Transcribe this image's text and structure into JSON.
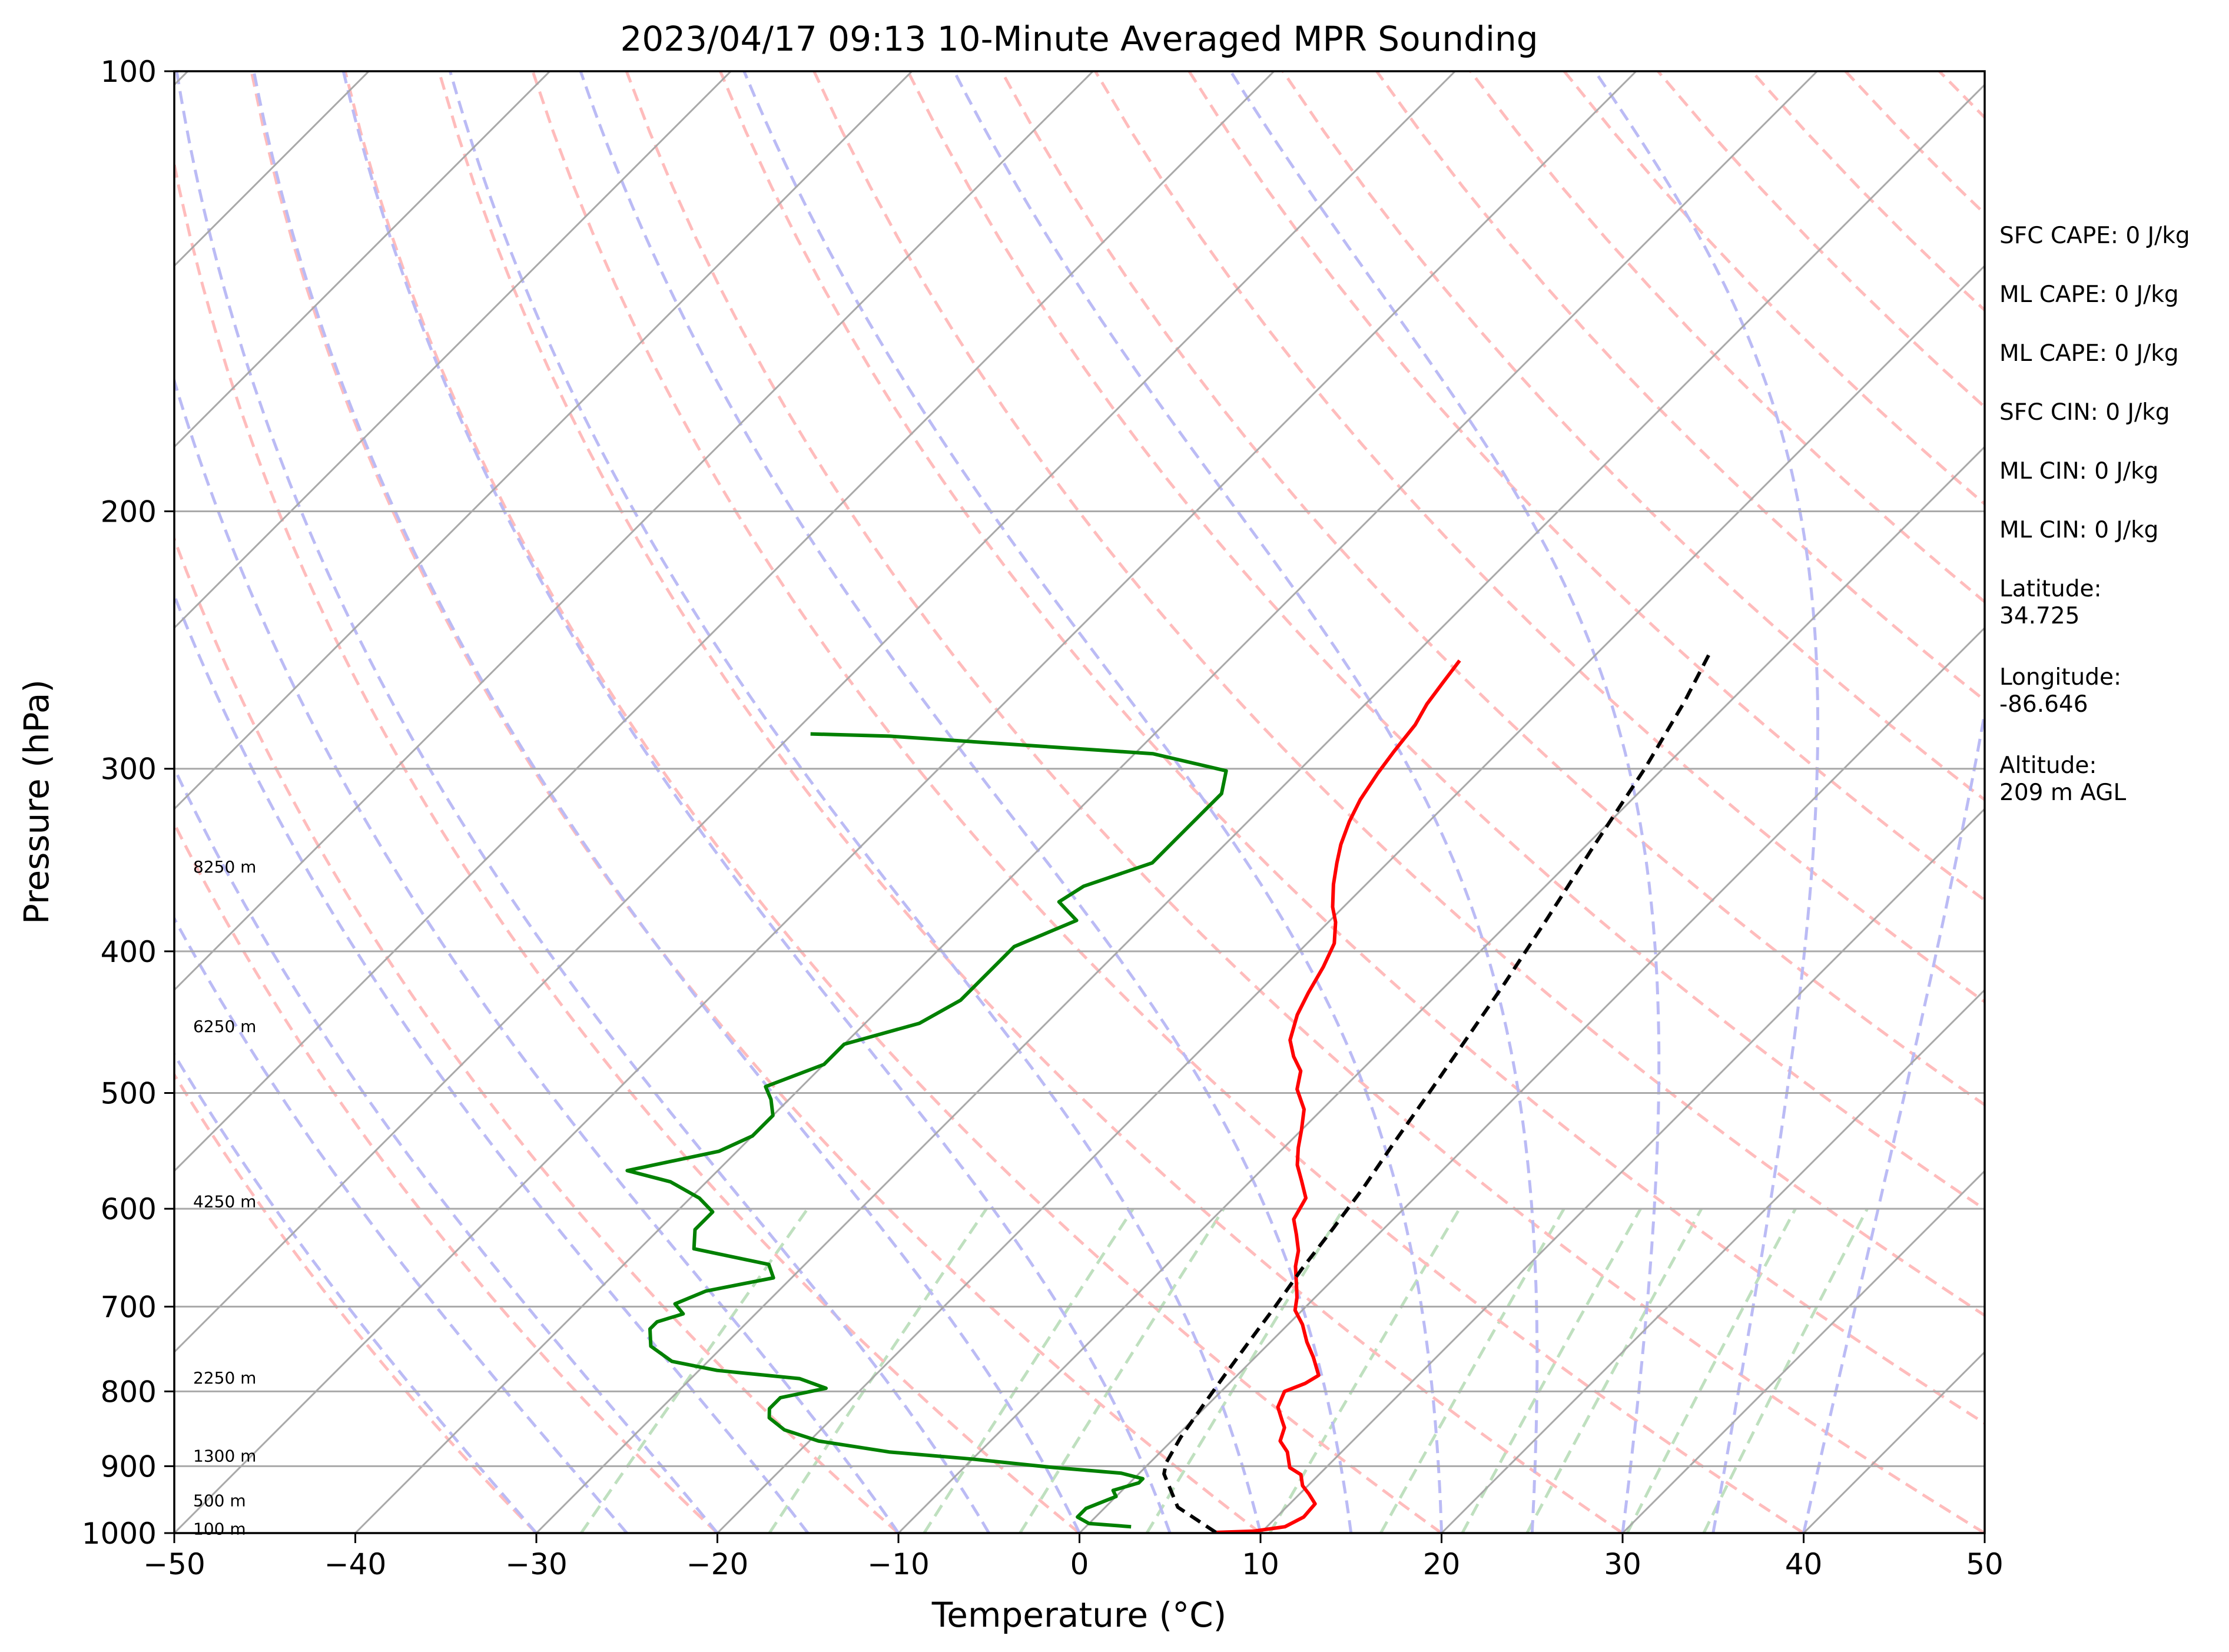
{
  "chart_data": {
    "type": "line",
    "subtype": "skew-t log-p",
    "title": "2023/04/17 09:13 10-Minute Averaged MPR Sounding",
    "xlabel": "Temperature (°C)",
    "ylabel": "Pressure (hPa)",
    "xlim": [
      -50,
      50
    ],
    "ylim": [
      1000,
      100
    ],
    "y_scale": "log",
    "skew_degrees": 45,
    "x_ticks": [
      "−50",
      "−40",
      "−30",
      "−20",
      "−10",
      "0",
      "10",
      "20",
      "30",
      "40",
      "50"
    ],
    "y_ticks": [
      "100",
      "200",
      "300",
      "400",
      "500",
      "600",
      "700",
      "800",
      "900",
      "1000"
    ],
    "height_labels": [
      {
        "p": 350,
        "text": "8250 m"
      },
      {
        "p": 450,
        "text": "6250 m"
      },
      {
        "p": 593,
        "text": "4250 m"
      },
      {
        "p": 783,
        "text": "2250 m"
      },
      {
        "p": 885,
        "text": "1300 m"
      },
      {
        "p": 950,
        "text": "500 m"
      },
      {
        "p": 993,
        "text": "100 m"
      }
    ],
    "series": [
      {
        "role": "temperature",
        "color": "#ff0000",
        "points": [
          [
            999,
            7.5
          ],
          [
            997,
            9.5
          ],
          [
            990,
            11.0
          ],
          [
            975,
            11.5
          ],
          [
            955,
            11.4
          ],
          [
            940,
            10.5
          ],
          [
            928,
            9.7
          ],
          [
            912,
            9.0
          ],
          [
            902,
            8.0
          ],
          [
            880,
            7.0
          ],
          [
            865,
            6.0
          ],
          [
            847,
            5.5
          ],
          [
            838,
            5.0
          ],
          [
            820,
            4.0
          ],
          [
            800,
            3.5
          ],
          [
            790,
            4.2
          ],
          [
            780,
            4.5
          ],
          [
            758,
            3.2
          ],
          [
            740,
            2.0
          ],
          [
            720,
            0.8
          ],
          [
            704,
            -0.4
          ],
          [
            690,
            -1.0
          ],
          [
            675,
            -1.8
          ],
          [
            657,
            -2.8
          ],
          [
            641,
            -3.5
          ],
          [
            625,
            -4.5
          ],
          [
            610,
            -5.5
          ],
          [
            590,
            -6.0
          ],
          [
            574,
            -7.2
          ],
          [
            560,
            -8.3
          ],
          [
            545,
            -9.2
          ],
          [
            530,
            -10.0
          ],
          [
            513,
            -11.0
          ],
          [
            497,
            -12.5
          ],
          [
            483,
            -13.3
          ],
          [
            472,
            -14.5
          ],
          [
            460,
            -15.6
          ],
          [
            442,
            -16.6
          ],
          [
            427,
            -17.2
          ],
          [
            410,
            -17.8
          ],
          [
            395,
            -18.5
          ],
          [
            382,
            -19.6
          ],
          [
            373,
            -20.6
          ],
          [
            360,
            -21.8
          ],
          [
            348,
            -22.8
          ],
          [
            338,
            -23.6
          ],
          [
            326,
            -24.4
          ],
          [
            315,
            -25.0
          ],
          [
            302,
            -25.5
          ],
          [
            292,
            -25.8
          ],
          [
            280,
            -26.1
          ],
          [
            271,
            -26.6
          ],
          [
            262,
            -26.9
          ],
          [
            253,
            -27.2
          ]
        ]
      },
      {
        "role": "dewpoint",
        "color": "#008000",
        "points": [
          [
            990,
            2.5
          ],
          [
            985,
            0.0
          ],
          [
            975,
            -1.0
          ],
          [
            962,
            -1.0
          ],
          [
            953,
            -0.5
          ],
          [
            944,
            0.0
          ],
          [
            935,
            -0.5
          ],
          [
            924,
            0.5
          ],
          [
            918,
            0.5
          ],
          [
            910,
            -1.0
          ],
          [
            902,
            -5.0
          ],
          [
            890,
            -10.0
          ],
          [
            880,
            -15.0
          ],
          [
            865,
            -19.5
          ],
          [
            850,
            -22.0
          ],
          [
            834,
            -23.5
          ],
          [
            822,
            -24.0
          ],
          [
            808,
            -24.0
          ],
          [
            796,
            -22.0
          ],
          [
            784,
            -24.0
          ],
          [
            774,
            -29.0
          ],
          [
            763,
            -32.0
          ],
          [
            745,
            -34.0
          ],
          [
            725,
            -35.0
          ],
          [
            717,
            -35.0
          ],
          [
            708,
            -34.0
          ],
          [
            697,
            -35.0
          ],
          [
            683,
            -34.0
          ],
          [
            669,
            -31.0
          ],
          [
            655,
            -32.0
          ],
          [
            639,
            -37.0
          ],
          [
            620,
            -38.0
          ],
          [
            603,
            -38.0
          ],
          [
            590,
            -39.5
          ],
          [
            575,
            -42.0
          ],
          [
            565,
            -45.0
          ],
          [
            548,
            -41.0
          ],
          [
            535,
            -40.0
          ],
          [
            518,
            -40.0
          ],
          [
            505,
            -41.0
          ],
          [
            495,
            -42.0
          ],
          [
            478,
            -40.0
          ],
          [
            463,
            -40.0
          ],
          [
            448,
            -37.0
          ],
          [
            432,
            -36.0
          ],
          [
            418,
            -36.0
          ],
          [
            406,
            -36.0
          ],
          [
            397,
            -36.0
          ],
          [
            381,
            -34.0
          ],
          [
            370,
            -36.0
          ],
          [
            361,
            -35.5
          ],
          [
            348,
            -33.0
          ],
          [
            336,
            -33.0
          ],
          [
            322,
            -33.0
          ],
          [
            312,
            -33.0
          ],
          [
            301,
            -34.0
          ],
          [
            293,
            -39.0
          ],
          [
            285,
            -54.5
          ],
          [
            284,
            -59.0
          ]
        ]
      },
      {
        "role": "parcel",
        "color": "#000000",
        "style": "dashed",
        "points": [
          [
            999,
            7.5
          ],
          [
            960,
            4.0
          ],
          [
            911,
            1.4
          ],
          [
            895,
            0.9
          ],
          [
            860,
            0.3
          ],
          [
            820,
            -0.2
          ],
          [
            780,
            -0.7
          ],
          [
            740,
            -1.2
          ],
          [
            700,
            -1.7
          ],
          [
            660,
            -2.3
          ],
          [
            620,
            -2.8
          ],
          [
            580,
            -3.4
          ],
          [
            540,
            -4.2
          ],
          [
            500,
            -5.0
          ],
          [
            460,
            -5.9
          ],
          [
            420,
            -6.9
          ],
          [
            380,
            -8.1
          ],
          [
            340,
            -9.5
          ],
          [
            300,
            -11.0
          ],
          [
            270,
            -12.5
          ],
          [
            250,
            -13.8
          ]
        ]
      }
    ],
    "background_lines": {
      "isotherm_color": "#a9a9a9",
      "dry_adiabat_color": "#ffbcbc",
      "moist_adiabat_color": "#bbbbf5",
      "mixing_ratio_color": "#bfe0bf"
    },
    "annotations": [
      [
        "SFC CAPE: 0 J/kg"
      ],
      [
        "ML CAPE: 0 J/kg"
      ],
      [
        "ML CAPE: 0 J/kg"
      ],
      [
        "SFC CIN: 0 J/kg"
      ],
      [
        "ML CIN: 0 J/kg"
      ],
      [
        "ML CIN: 0 J/kg"
      ],
      [
        "Latitude:",
        "34.725"
      ],
      [
        "Longitude:",
        "-86.646"
      ],
      [
        "Altitude:",
        "209 m AGL"
      ]
    ]
  }
}
